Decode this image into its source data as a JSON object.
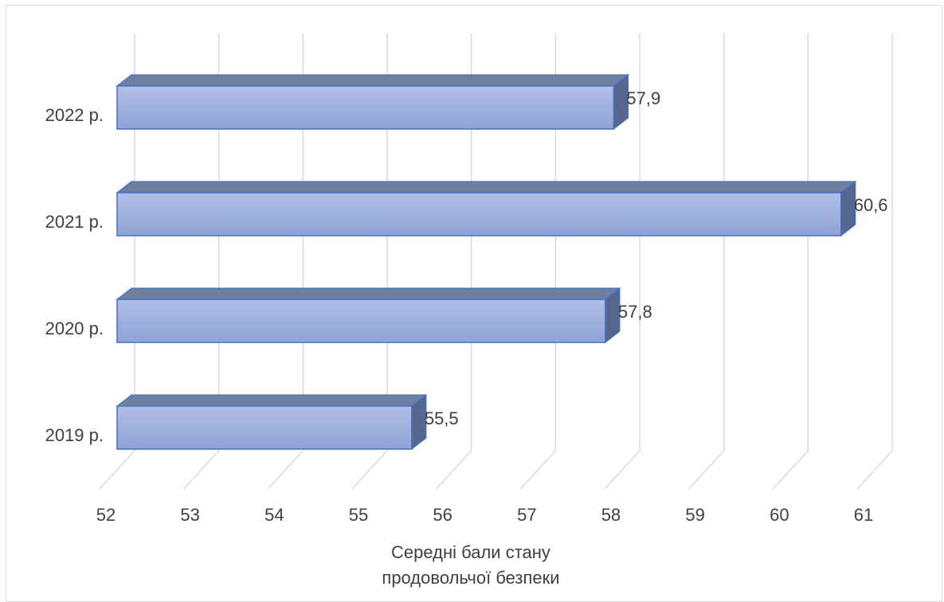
{
  "chart_data": {
    "type": "bar",
    "orientation": "horizontal",
    "style": "3d-clustered",
    "categories": [
      "2019 р.",
      "2020 р.",
      "2021 р.",
      "2022 р."
    ],
    "values": [
      55.5,
      57.8,
      60.6,
      57.9
    ],
    "value_labels": [
      "55,5",
      "57,8",
      "60,6",
      "57,9"
    ],
    "xlim": [
      52,
      61
    ],
    "ticks": [
      52,
      53,
      54,
      55,
      56,
      57,
      58,
      59,
      60,
      61
    ],
    "xlabel_lines": [
      "Середні бали стану",
      "продовольчої безпеки"
    ],
    "grid": true,
    "colors": {
      "bar_front_top": "#b0bfe6",
      "bar_front_bottom": "#8fa3d6",
      "bar_top": "#6f7fa0",
      "bar_side": "#55678f",
      "bar_edge": "#4472c4",
      "grid": "#d9d9d9",
      "text": "#404040"
    }
  }
}
